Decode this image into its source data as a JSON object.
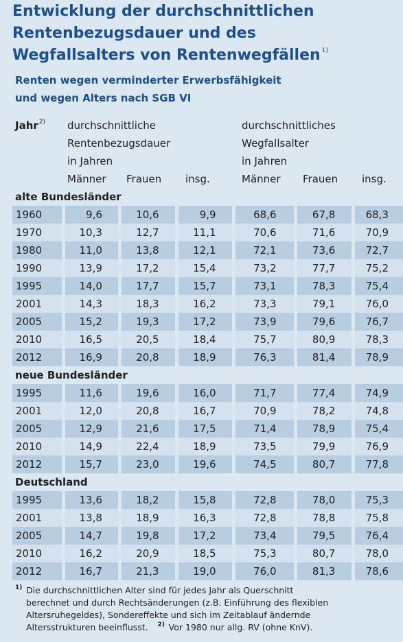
{
  "header": {
    "title_lines": [
      "Entwicklung der durchschnittlichen",
      "Rentenbezugsdauer und des",
      "Wegfallsalters von Rentenwegfällen"
    ],
    "title_note": "1)",
    "subtitle_lines": [
      "Renten wegen verminderter Erwerbsfähigkeit",
      "und wegen Alters nach SGB VI"
    ]
  },
  "table": {
    "year_header": "Jahr",
    "year_note": "2)",
    "group_headers": [
      {
        "label_lines": [
          "durchschnittliche",
          "Rentenbezugsdauer"
        ],
        "unit": "in Jahren"
      },
      {
        "label_lines": [
          "durchschnittliches",
          "Wegfallsalter"
        ],
        "unit": "in Jahren"
      }
    ],
    "subheaders": [
      "Männer",
      "Frauen",
      "insg.",
      "Männer",
      "Frauen",
      "insg."
    ],
    "sections": [
      {
        "label": "alte Bundesländer",
        "rows": [
          [
            "1960",
            "9,6",
            "10,6",
            "9,9",
            "68,6",
            "67,8",
            "68,3"
          ],
          [
            "1970",
            "10,3",
            "12,7",
            "11,1",
            "70,6",
            "71,6",
            "70,9"
          ],
          [
            "1980",
            "11,0",
            "13,8",
            "12,1",
            "72,1",
            "73,6",
            "72,7"
          ],
          [
            "1990",
            "13,9",
            "17,2",
            "15,4",
            "73,2",
            "77,7",
            "75,2"
          ],
          [
            "1995",
            "14,0",
            "17,7",
            "15,7",
            "73,1",
            "78,3",
            "75,4"
          ],
          [
            "2001",
            "14,3",
            "18,3",
            "16,2",
            "73,3",
            "79,1",
            "76,0"
          ],
          [
            "2005",
            "15,2",
            "19,3",
            "17,2",
            "73,9",
            "79,6",
            "76,7"
          ],
          [
            "2010",
            "16,5",
            "20,5",
            "18,4",
            "75,7",
            "80,9",
            "78,3"
          ],
          [
            "2012",
            "16,9",
            "20,8",
            "18,9",
            "76,3",
            "81,4",
            "78,9"
          ]
        ]
      },
      {
        "label": "neue Bundesländer",
        "rows": [
          [
            "1995",
            "11,6",
            "19,6",
            "16,0",
            "71,7",
            "77,4",
            "74,9"
          ],
          [
            "2001",
            "12,0",
            "20,8",
            "16,7",
            "70,9",
            "78,2",
            "74,8"
          ],
          [
            "2005",
            "12,9",
            "21,6",
            "17,5",
            "71,4",
            "78,9",
            "75,4"
          ],
          [
            "2010",
            "14,9",
            "22,4",
            "18,9",
            "73,5",
            "79,9",
            "76,9"
          ],
          [
            "2012",
            "15,7",
            "23,0",
            "19,6",
            "74,5",
            "80,7",
            "77,8"
          ]
        ]
      },
      {
        "label": "Deutschland",
        "rows": [
          [
            "1995",
            "13,6",
            "18,2",
            "15,8",
            "72,8",
            "78,0",
            "75,3"
          ],
          [
            "2001",
            "13,8",
            "18,9",
            "16,3",
            "72,8",
            "78,8",
            "75,8"
          ],
          [
            "2005",
            "14,7",
            "19,8",
            "17,2",
            "73,4",
            "79,5",
            "76,4"
          ],
          [
            "2010",
            "16,2",
            "20,9",
            "18,5",
            "75,3",
            "80,7",
            "78,0"
          ],
          [
            "2012",
            "16,7",
            "21,3",
            "19,0",
            "76,0",
            "81,3",
            "78,6"
          ]
        ]
      }
    ]
  },
  "footnotes": [
    {
      "marker": "1)",
      "lines": [
        "Die durchschnittlichen Alter sind für jedes Jahr als Querschnitt",
        "berechnet und durch Rechtsänderungen (z.B. Einführung des flexiblen",
        "Altersruhegeldes), Sondereffekte und sich im Zeitablauf ändernde",
        "Altersstrukturen beeinflusst."
      ]
    },
    {
      "marker": "2)",
      "lines": [
        "Vor 1980 nur allg. RV (ohne KnV)."
      ]
    }
  ]
}
